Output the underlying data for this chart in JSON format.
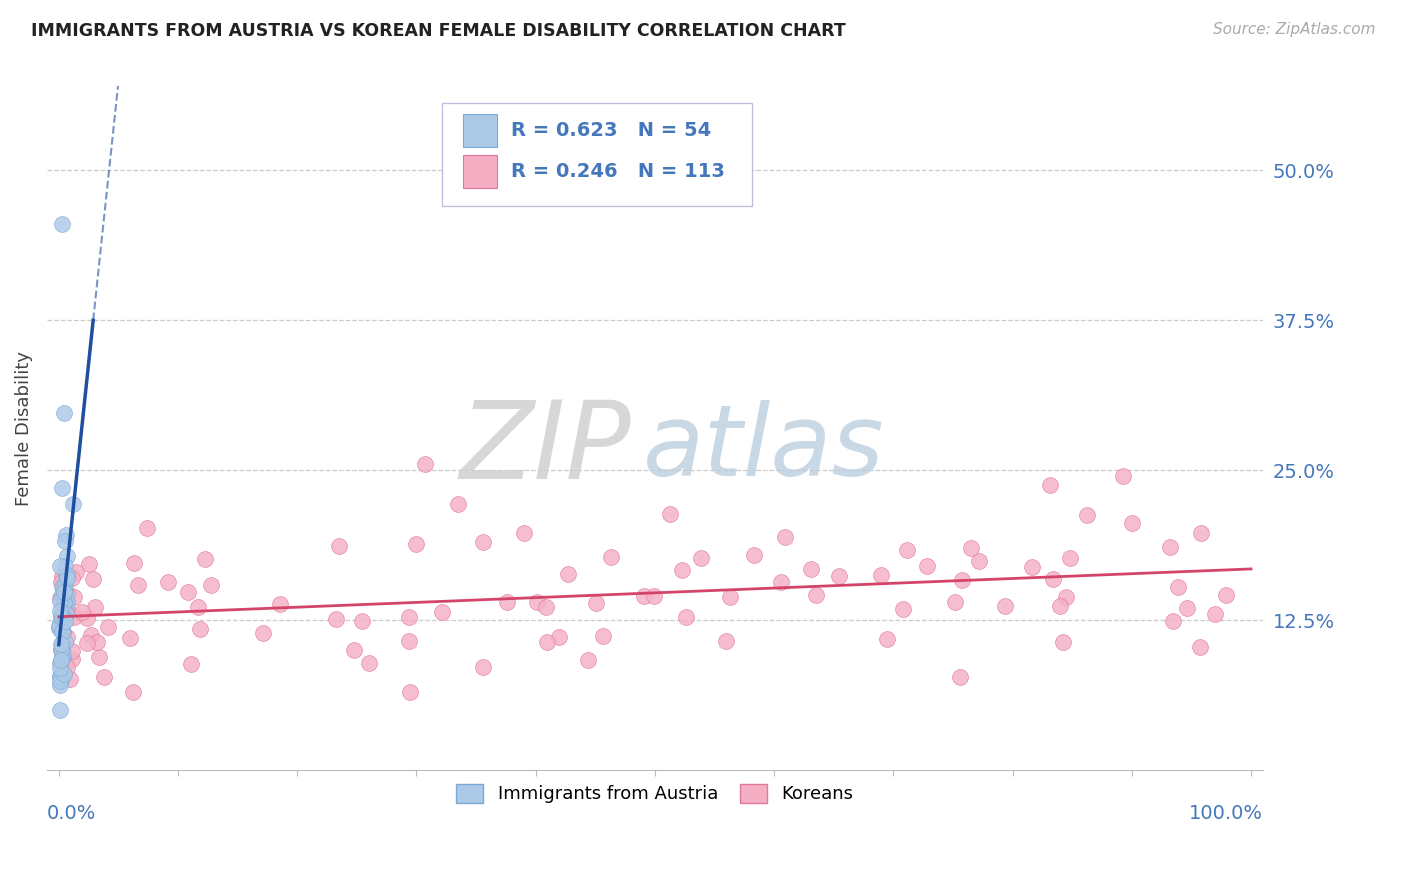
{
  "title": "IMMIGRANTS FROM AUSTRIA VS KOREAN FEMALE DISABILITY CORRELATION CHART",
  "source": "Source: ZipAtlas.com",
  "ylabel": "Female Disability",
  "right_yticklabels": [
    "12.5%",
    "25.0%",
    "37.5%",
    "50.0%"
  ],
  "right_yticks": [
    0.125,
    0.25,
    0.375,
    0.5
  ],
  "legend1_text_r": "R = 0.623",
  "legend1_text_n": "N = 54",
  "legend2_text_r": "R = 0.246",
  "legend2_text_n": "N = 113",
  "legend_label1": "Immigrants from Austria",
  "legend_label2": "Koreans",
  "austria_face": "#adc9e8",
  "austria_edge": "#7aaad4",
  "korean_face": "#f5afc4",
  "korean_edge": "#e07898",
  "blue_line": "#1e4fa0",
  "pink_line": "#d44468",
  "bg": "#ffffff",
  "grid_color": "#cccccc",
  "ylim_low": 0.0,
  "ylim_high": 0.57,
  "title_color": "#222222",
  "source_color": "#aaaaaa",
  "axis_label_color": "#4477bb",
  "legend_text_color": "#4477bb",
  "zip_color": "#cccccc",
  "atlas_color": "#aabbd4"
}
